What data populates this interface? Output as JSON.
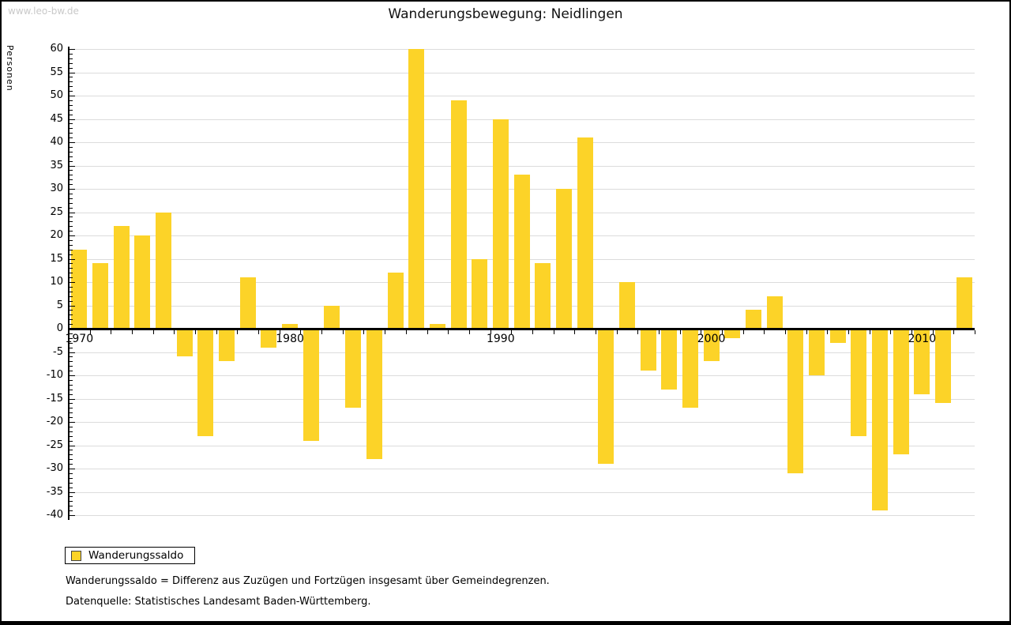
{
  "watermark": "www.leo-bw.de",
  "header": {
    "title": "Wanderungsbewegung: Neidlingen"
  },
  "chart_data": {
    "type": "bar",
    "title": "Wanderungsbewegung: Neidlingen",
    "xlabel": "",
    "ylabel": "Personen",
    "ylim": [
      -40,
      60
    ],
    "ytick_step": 5,
    "ytick_minor_step": 1,
    "grid": true,
    "bar_color": "#fcd328",
    "legend": {
      "label": "Wanderungssaldo",
      "position": "bottom-left"
    },
    "x_decade_labels": [
      "1970",
      "1980",
      "1990",
      "2000",
      "2010"
    ],
    "years": [
      1970,
      1971,
      1972,
      1973,
      1974,
      1975,
      1976,
      1977,
      1978,
      1979,
      1980,
      1981,
      1982,
      1983,
      1984,
      1985,
      1986,
      1987,
      1988,
      1989,
      1990,
      1991,
      1992,
      1993,
      1994,
      1995,
      1996,
      1997,
      1998,
      1999,
      2000,
      2001,
      2002,
      2003,
      2004,
      2005,
      2006,
      2007,
      2008,
      2009,
      2010,
      2011,
      2012
    ],
    "values": [
      17,
      14,
      22,
      20,
      25,
      -6,
      -23,
      -7,
      11,
      -4,
      1,
      -24,
      5,
      -17,
      -28,
      12,
      60,
      1,
      49,
      15,
      45,
      33,
      14,
      30,
      41,
      -29,
      10,
      -9,
      -13,
      -17,
      -7,
      -2,
      4,
      7,
      -31,
      -10,
      -3,
      -23,
      -39,
      -27,
      -14,
      -16,
      11
    ]
  },
  "footnotes": [
    "Wanderungssaldo = Differenz aus Zuzügen und Fortzügen insgesamt über Gemeindegrenzen.",
    "Datenquelle: Statistisches Landesamt Baden-Württemberg."
  ]
}
